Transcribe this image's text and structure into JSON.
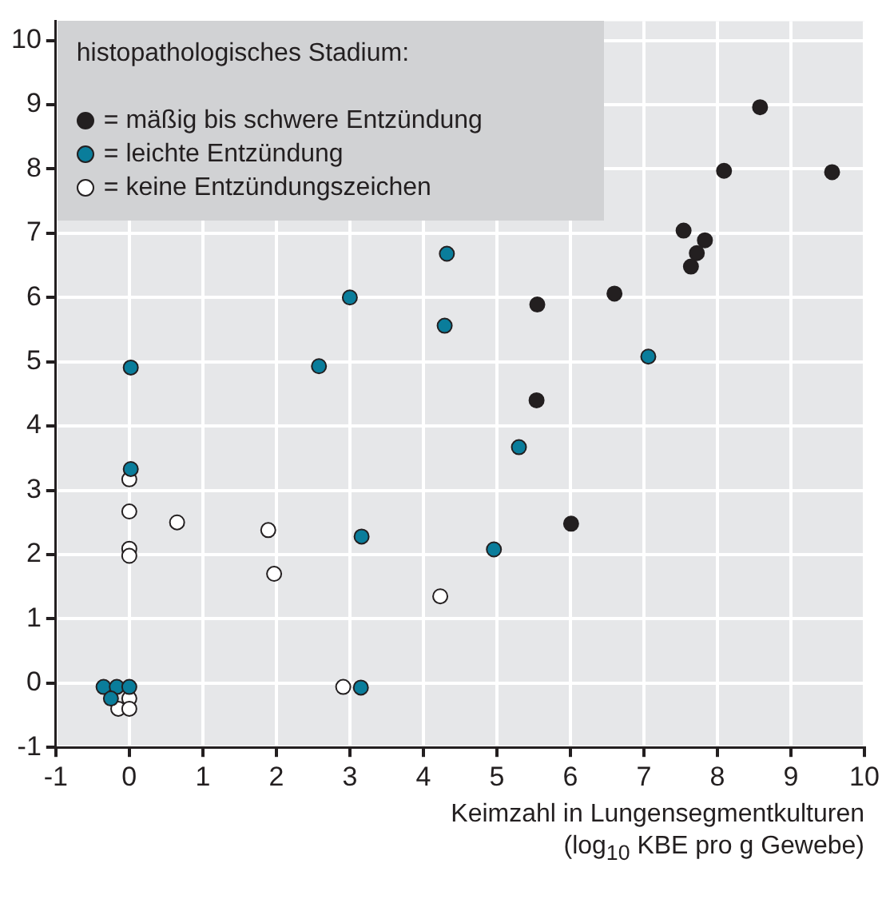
{
  "chart_data": {
    "type": "scatter",
    "xlabel": "Keimzahl in Lungensegmentkulturen (log$_{10}$ KBE pro g Gewebe)",
    "legend_title": "histopathologisches Stadium:",
    "legend": "top left",
    "grid": true,
    "marker": "circle",
    "xlim": [
      -1,
      10
    ],
    "xticks": [
      -1,
      0,
      1,
      2,
      3,
      4,
      5,
      6,
      7,
      8,
      9,
      10
    ],
    "ylim": [
      -1,
      10.3
    ],
    "yticks": [
      -1,
      0,
      1,
      2,
      3,
      4,
      5,
      6,
      7,
      8,
      9,
      10
    ],
    "series": [
      {
        "name": "= mäßig bis schwere Entzündung",
        "color": "#231f20",
        "x": [
          8.58,
          8.09,
          9.56,
          7.54,
          7.83,
          7.72,
          7.64,
          6.6,
          5.55,
          5.54,
          6.01
        ],
        "values": [
          8.96,
          7.97,
          7.95,
          7.04,
          6.89,
          6.69,
          6.48,
          6.06,
          5.89,
          4.4,
          2.48
        ]
      },
      {
        "name": "= leichte Entzündung",
        "color": "#0a7d9b",
        "x": [
          4.32,
          4.29,
          7.06,
          5.3,
          3.0,
          2.58,
          0.02,
          0.02,
          3.16,
          3.15,
          -0.35,
          -0.17,
          0.0,
          -0.25,
          4.96
        ],
        "values": [
          6.68,
          5.56,
          5.08,
          3.67,
          6.0,
          4.93,
          4.91,
          3.33,
          2.28,
          -0.07,
          -0.06,
          -0.06,
          -0.06,
          -0.24,
          2.08
        ]
      },
      {
        "name": "= keine Entzündungszeichen",
        "color": "#ffffff",
        "x": [
          0.0,
          0.0,
          0.65,
          0.0,
          0.0,
          1.89,
          1.97,
          4.23,
          2.91,
          0.0,
          -0.15,
          0.0
        ],
        "values": [
          3.17,
          2.67,
          2.5,
          2.09,
          1.98,
          2.38,
          1.7,
          1.35,
          -0.06,
          -0.24,
          -0.4,
          -0.4
        ]
      }
    ]
  }
}
